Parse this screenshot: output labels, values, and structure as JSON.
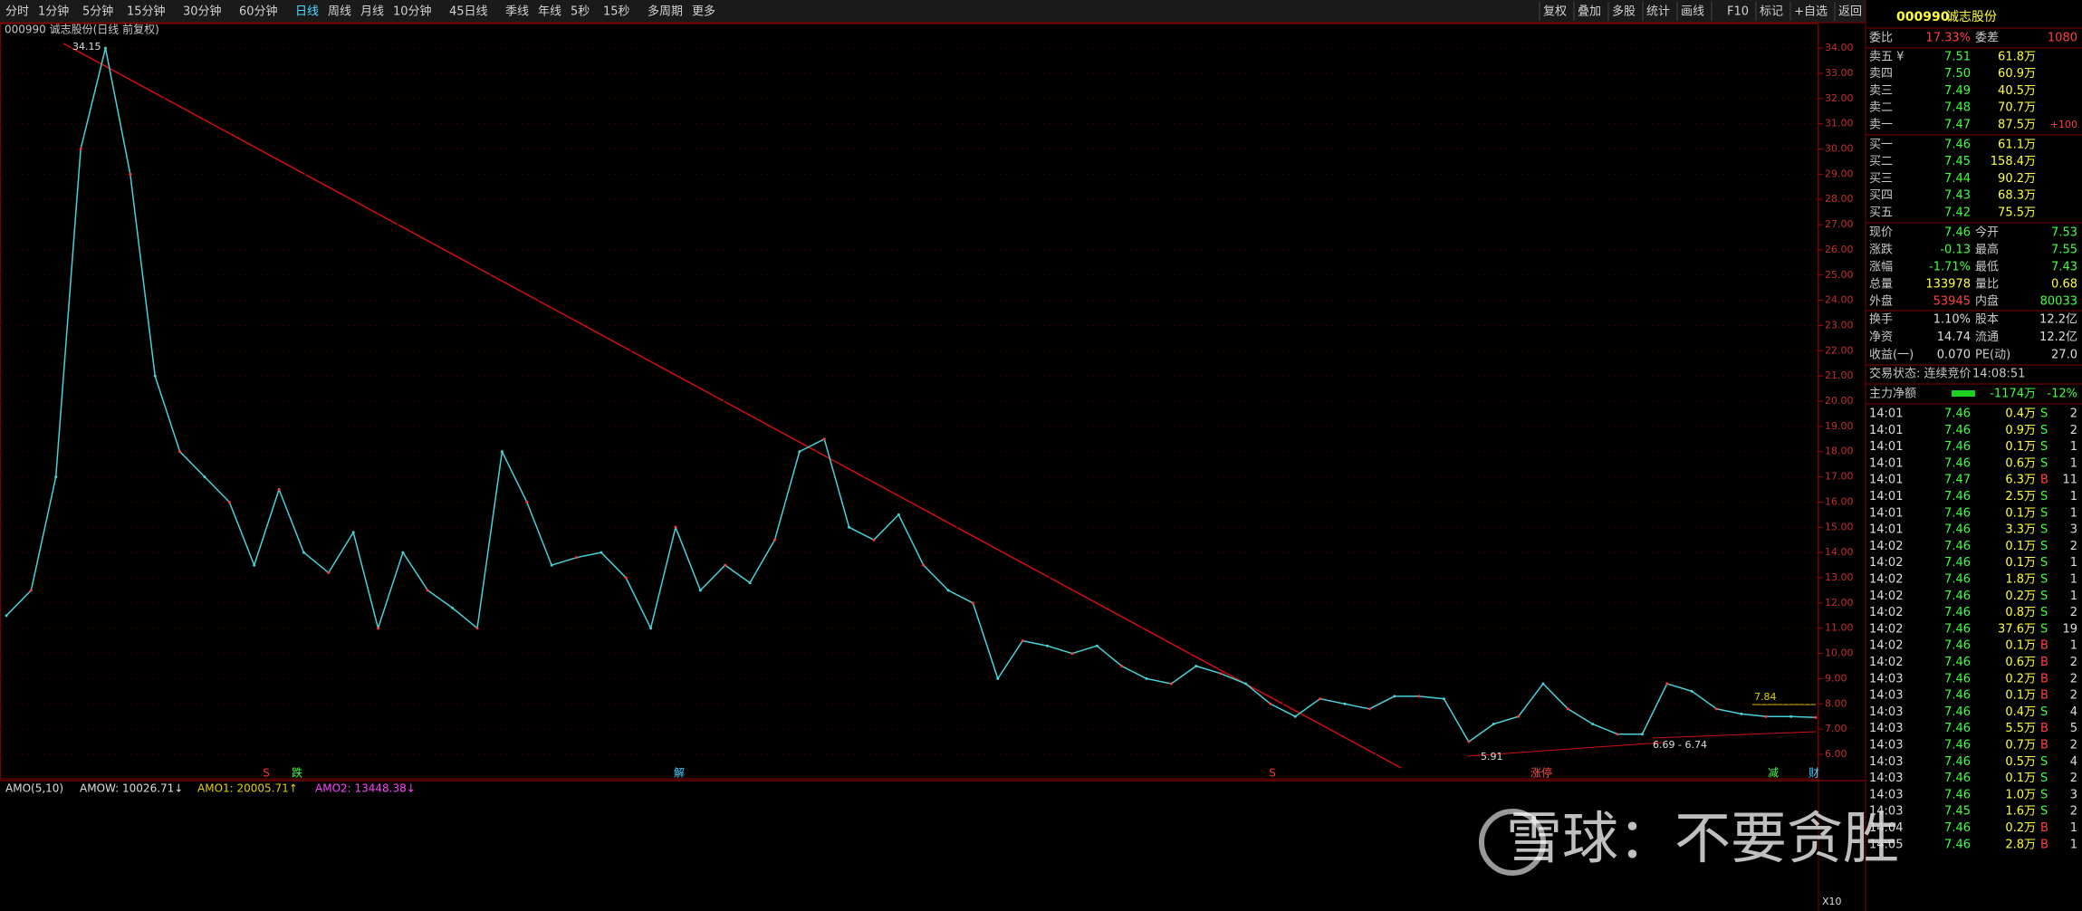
{
  "toolbar": {
    "periods": [
      "分时",
      "1分钟",
      "5分钟",
      "15分钟",
      "30分钟",
      "60分钟",
      "日线",
      "周线",
      "月线",
      "10分钟",
      "45日线",
      "季线",
      "年线",
      "5秒",
      "15秒",
      "多周期",
      "更多"
    ],
    "tools": [
      "复权",
      "叠加",
      "多股",
      "统计",
      "画线",
      "F10",
      "标记",
      "+自选",
      "返回"
    ]
  },
  "chart": {
    "title": "000990 诚志股份(日线 前复权)",
    "ylim": [
      5.03,
      34.9
    ],
    "yticks": [
      {
        "value": 34,
        "label": "34.00"
      },
      {
        "value": 33,
        "label": "33.00"
      },
      {
        "value": 32,
        "label": "32.00"
      },
      {
        "value": 31,
        "label": "31.00"
      },
      {
        "value": 30,
        "label": "30.00"
      },
      {
        "value": 29,
        "label": "29.00"
      },
      {
        "value": 28,
        "label": "28.00"
      },
      {
        "value": 27,
        "label": "27.00"
      },
      {
        "value": 26,
        "label": "26.00"
      },
      {
        "value": 25,
        "label": "25.00"
      },
      {
        "value": 24,
        "label": "24.00"
      },
      {
        "value": 23,
        "label": "23.00"
      },
      {
        "value": 22,
        "label": "22.00"
      },
      {
        "value": 21,
        "label": "21.00"
      },
      {
        "value": 20,
        "label": "20.00"
      },
      {
        "value": 19,
        "label": "19.00"
      },
      {
        "value": 18,
        "label": "18.00"
      },
      {
        "value": 17,
        "label": "17.00"
      },
      {
        "value": 16,
        "label": "16.00"
      },
      {
        "value": 15,
        "label": "15.00"
      },
      {
        "value": 14,
        "label": "14.00"
      },
      {
        "value": 13,
        "label": "13.00"
      },
      {
        "value": 12,
        "label": "12.00"
      },
      {
        "value": 11,
        "label": "11.00"
      },
      {
        "value": 10,
        "label": "10.00"
      },
      {
        "value": 9,
        "label": "9.00"
      },
      {
        "value": 8,
        "label": "8.00"
      },
      {
        "value": 7,
        "label": "7.00"
      },
      {
        "value": 6,
        "label": "6.00"
      }
    ],
    "values": [
      11.5,
      12.5,
      17,
      30,
      34,
      29,
      21,
      18,
      17,
      16,
      13.5,
      16.5,
      14,
      13.2,
      14.8,
      11,
      14,
      12.5,
      11.8,
      11,
      18,
      16,
      13.5,
      13.8,
      14,
      13,
      11,
      15,
      12.5,
      13.5,
      12.8,
      14.5,
      18,
      18.5,
      15,
      14.5,
      15.5,
      13.5,
      12.5,
      12,
      9,
      10.5,
      10.3,
      10,
      10.3,
      9.5,
      9,
      8.8,
      9.5,
      9.2,
      8.8,
      8,
      7.5,
      8.2,
      8,
      7.8,
      8.3,
      8.3,
      8.2,
      6.5,
      7.2,
      7.5,
      8.8,
      7.8,
      7.2,
      6.8,
      6.8,
      8.8,
      8.5,
      7.8,
      7.6,
      7.5,
      7.5,
      7.46
    ],
    "high_label": "34.15",
    "low_label": "5.91",
    "range_label": "6.69 - 6.74",
    "mark_label": "7.84",
    "markers": [
      "S",
      "跌",
      "解",
      "S",
      "涨停",
      "减",
      "财"
    ]
  },
  "volume": {
    "texts": [
      "AMO(5,10)",
      "AMOW: 10026.71↓",
      "AMO1: 20005.71↑",
      "AMO2: 13448.38↓"
    ],
    "scale": "X10"
  },
  "watermark": "雪球：不要贪胜",
  "panel": {
    "code": "000990",
    "name": "诚志股份",
    "ratio": [
      "委比",
      "17.33%",
      "委差",
      "1080"
    ],
    "asks": [
      [
        "卖五 ¥",
        "7.51",
        "61.8万"
      ],
      [
        "卖四",
        "7.50",
        "60.9万"
      ],
      [
        "卖三",
        "7.49",
        "40.5万"
      ],
      [
        "卖二",
        "7.48",
        "70.7万"
      ],
      [
        "卖一",
        "7.47",
        "87.5万",
        "+100"
      ]
    ],
    "bids": [
      [
        "买一",
        "7.46",
        "61.1万"
      ],
      [
        "买二",
        "7.45",
        "158.4万"
      ],
      [
        "买三",
        "7.44",
        "90.2万"
      ],
      [
        "买四",
        "7.43",
        "68.3万"
      ],
      [
        "买五",
        "7.42",
        "75.5万"
      ]
    ],
    "stats": [
      [
        "现价",
        "7.46",
        "今开",
        "7.53"
      ],
      [
        "涨跌",
        "-0.13",
        "最高",
        "7.55"
      ],
      [
        "涨幅",
        "-1.71%",
        "最低",
        "7.43"
      ],
      [
        "总量",
        "133978",
        "量比",
        "0.68"
      ],
      [
        "外盘",
        "53945",
        "内盘",
        "80033"
      ]
    ],
    "fund": [
      [
        "换手",
        "1.10%",
        "股本",
        "12.2亿"
      ],
      [
        "净资",
        "14.74",
        "流通",
        "12.2亿"
      ],
      [
        "收益(一)",
        "0.070",
        "PE(动)",
        "27.0"
      ]
    ],
    "status": [
      "交易状态: 连续竞价",
      "14:08:51"
    ],
    "flow": [
      "主力净额",
      "-1174万",
      "-12%"
    ],
    "trades": [
      [
        "14:01",
        "7.46",
        "0.4万",
        "S",
        "2"
      ],
      [
        "14:01",
        "7.46",
        "0.9万",
        "S",
        "2"
      ],
      [
        "14:01",
        "7.46",
        "0.1万",
        "S",
        "1"
      ],
      [
        "14:01",
        "7.46",
        "0.6万",
        "S",
        "1"
      ],
      [
        "14:01",
        "7.47",
        "6.3万",
        "B",
        "11"
      ],
      [
        "14:01",
        "7.46",
        "2.5万",
        "S",
        "1"
      ],
      [
        "14:01",
        "7.46",
        "0.1万",
        "S",
        "1"
      ],
      [
        "14:01",
        "7.46",
        "3.3万",
        "S",
        "3"
      ],
      [
        "14:02",
        "7.46",
        "0.1万",
        "S",
        "2"
      ],
      [
        "14:02",
        "7.46",
        "0.1万",
        "S",
        "1"
      ],
      [
        "14:02",
        "7.46",
        "1.8万",
        "S",
        "1"
      ],
      [
        "14:02",
        "7.46",
        "0.2万",
        "S",
        "1"
      ],
      [
        "14:02",
        "7.46",
        "0.8万",
        "S",
        "2"
      ],
      [
        "14:02",
        "7.46",
        "37.6万",
        "S",
        "19"
      ],
      [
        "14:02",
        "7.46",
        "0.1万",
        "B",
        "1"
      ],
      [
        "14:02",
        "7.46",
        "0.6万",
        "B",
        "2"
      ],
      [
        "14:03",
        "7.46",
        "0.2万",
        "B",
        "2"
      ],
      [
        "14:03",
        "7.46",
        "0.1万",
        "B",
        "2"
      ],
      [
        "14:03",
        "7.46",
        "0.4万",
        "S",
        "4"
      ],
      [
        "14:03",
        "7.46",
        "5.5万",
        "B",
        "5"
      ],
      [
        "14:03",
        "7.46",
        "0.7万",
        "B",
        "2"
      ],
      [
        "14:03",
        "7.46",
        "0.5万",
        "S",
        "4"
      ],
      [
        "14:03",
        "7.46",
        "0.1万",
        "S",
        "2"
      ],
      [
        "14:03",
        "7.46",
        "1.0万",
        "S",
        "3"
      ],
      [
        "14:03",
        "7.45",
        "1.6万",
        "S",
        "2"
      ],
      [
        "14:04",
        "7.46",
        "0.2万",
        "B",
        "1"
      ],
      [
        "14:05",
        "7.46",
        "2.8万",
        "B",
        "1"
      ]
    ]
  }
}
